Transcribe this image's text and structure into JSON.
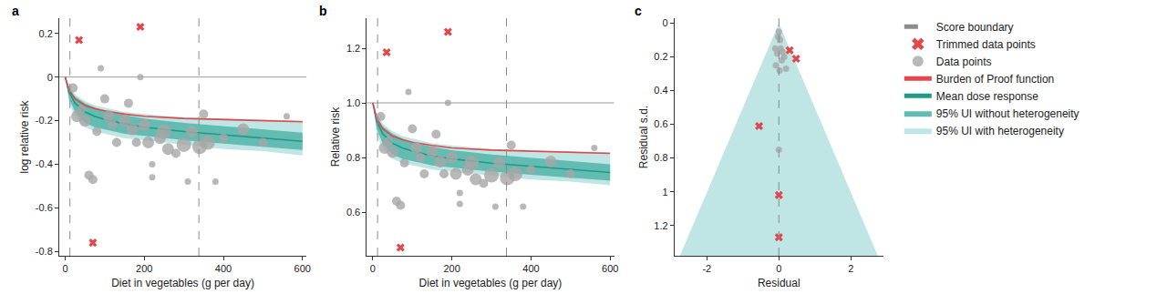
{
  "chart_data": [
    {
      "type": "line",
      "panel_label": "a",
      "legend": "right",
      "x_label": "Diet in vegetables (g per day)",
      "y_label": "log relative risk",
      "xlim": [
        -15,
        610
      ],
      "xticks": [
        0,
        200,
        400,
        600
      ],
      "ylim": [
        -0.82,
        0.27
      ],
      "yticks": [
        -0.8,
        -0.6,
        -0.4,
        -0.2,
        0,
        0.2
      ],
      "reference_line": 0,
      "curve_x": [
        0,
        10,
        25,
        50,
        75,
        100,
        150,
        200,
        300,
        400,
        500,
        600
      ],
      "series": [
        {
          "name": "95% UI with heterogeneity",
          "type": "band",
          "color": "#bfe6e4",
          "lower": [
            0,
            -0.12,
            -0.18,
            -0.23,
            -0.25,
            -0.26,
            -0.28,
            -0.29,
            -0.31,
            -0.33,
            -0.34,
            -0.36
          ],
          "upper": [
            0,
            -0.04,
            -0.08,
            -0.11,
            -0.13,
            -0.14,
            -0.16,
            -0.17,
            -0.185,
            -0.19,
            -0.195,
            -0.2
          ]
        },
        {
          "name": "95% UI without heterogeneity",
          "type": "band",
          "color": "#62bcb1",
          "lower": [
            0,
            -0.1,
            -0.16,
            -0.21,
            -0.23,
            -0.24,
            -0.26,
            -0.27,
            -0.29,
            -0.305,
            -0.32,
            -0.335
          ],
          "upper": [
            0,
            -0.05,
            -0.09,
            -0.12,
            -0.14,
            -0.155,
            -0.175,
            -0.19,
            -0.21,
            -0.225,
            -0.24,
            -0.255
          ]
        },
        {
          "name": "Mean dose response",
          "type": "line",
          "color": "#1f9a86",
          "values": [
            0,
            -0.07,
            -0.12,
            -0.16,
            -0.18,
            -0.195,
            -0.215,
            -0.23,
            -0.25,
            -0.265,
            -0.28,
            -0.295
          ]
        },
        {
          "name": "Burden of Proof function",
          "type": "line",
          "color": "#e2474b",
          "values": [
            0,
            -0.06,
            -0.1,
            -0.13,
            -0.145,
            -0.155,
            -0.17,
            -0.18,
            -0.19,
            -0.195,
            -0.2,
            -0.205
          ]
        },
        {
          "name": "Data points",
          "type": "scatter",
          "color": "#a6a6a6",
          "marker": "circle",
          "x": [
            20,
            30,
            40,
            50,
            60,
            70,
            80,
            90,
            100,
            110,
            120,
            130,
            150,
            160,
            170,
            180,
            190,
            200,
            210,
            220,
            220,
            240,
            250,
            260,
            280,
            300,
            310,
            320,
            340,
            350,
            360,
            380,
            400,
            450,
            500,
            560
          ],
          "values": [
            -0.05,
            -0.18,
            -0.15,
            -0.2,
            -0.45,
            -0.47,
            -0.25,
            0.04,
            -0.1,
            -0.18,
            -0.22,
            -0.3,
            -0.2,
            -0.12,
            -0.24,
            -0.3,
            0,
            -0.22,
            -0.3,
            -0.4,
            -0.46,
            -0.28,
            -0.25,
            -0.33,
            -0.35,
            -0.31,
            -0.48,
            -0.25,
            -0.32,
            -0.17,
            -0.3,
            -0.48,
            -0.28,
            -0.24,
            -0.3,
            -0.18
          ],
          "size": [
            2,
            3,
            2,
            3,
            2,
            2,
            2,
            1,
            2,
            3,
            2,
            2,
            3,
            2,
            3,
            2,
            1,
            3,
            3,
            1,
            1,
            3,
            4,
            3,
            2,
            4,
            1,
            3,
            4,
            2,
            4,
            1,
            2,
            3,
            2,
            1
          ]
        },
        {
          "name": "Trimmed data points",
          "type": "scatter",
          "color": "#e2474b",
          "marker": "x",
          "x": [
            35,
            190,
            70
          ],
          "values": [
            0.17,
            0.23,
            -0.76
          ]
        },
        {
          "name": "Score boundary",
          "type": "vline",
          "color": "#8c8c8c",
          "line_style": "dash",
          "x": [
            12,
            338
          ]
        }
      ]
    },
    {
      "type": "line",
      "panel_label": "b",
      "x_label": "Diet in vegetables (g per day)",
      "y_label": "Relative risk",
      "xlim": [
        -15,
        610
      ],
      "xticks": [
        0,
        200,
        400,
        600
      ],
      "ylim": [
        0.44,
        1.31
      ],
      "yticks": [
        0.6,
        0.8,
        {
          "value": 1,
          "label": "1.0"
        },
        1.2
      ],
      "reference_line": 1,
      "curve_x": [
        0,
        10,
        25,
        50,
        75,
        100,
        150,
        200,
        300,
        400,
        500,
        600
      ],
      "series": [
        {
          "name": "95% UI with heterogeneity",
          "type": "band",
          "color": "#bfe6e4",
          "lower": [
            1,
            0.887,
            0.835,
            0.795,
            0.779,
            0.771,
            0.756,
            0.748,
            0.733,
            0.719,
            0.712,
            0.698
          ],
          "upper": [
            1,
            0.961,
            0.923,
            0.896,
            0.878,
            0.869,
            0.852,
            0.844,
            0.831,
            0.827,
            0.823,
            0.819
          ]
        },
        {
          "name": "95% UI without heterogeneity",
          "type": "band",
          "color": "#62bcb1",
          "lower": [
            1,
            0.905,
            0.852,
            0.811,
            0.795,
            0.787,
            0.771,
            0.763,
            0.748,
            0.737,
            0.726,
            0.715
          ],
          "upper": [
            1,
            0.951,
            0.914,
            0.887,
            0.869,
            0.856,
            0.839,
            0.827,
            0.811,
            0.799,
            0.787,
            0.775
          ]
        },
        {
          "name": "Mean dose response",
          "type": "line",
          "color": "#1f9a86",
          "values": [
            1,
            0.932,
            0.887,
            0.852,
            0.835,
            0.823,
            0.806,
            0.795,
            0.779,
            0.767,
            0.756,
            0.745
          ]
        },
        {
          "name": "Burden of Proof function",
          "type": "line",
          "color": "#e2474b",
          "values": [
            1,
            0.942,
            0.905,
            0.878,
            0.865,
            0.856,
            0.844,
            0.835,
            0.827,
            0.823,
            0.819,
            0.815
          ]
        },
        {
          "name": "Data points",
          "type": "scatter",
          "color": "#a6a6a6",
          "marker": "circle",
          "x": [
            20,
            30,
            40,
            50,
            60,
            70,
            80,
            90,
            100,
            110,
            120,
            130,
            150,
            160,
            170,
            180,
            190,
            200,
            210,
            220,
            220,
            240,
            250,
            260,
            280,
            300,
            310,
            320,
            340,
            350,
            360,
            380,
            400,
            450,
            500,
            560
          ],
          "values": [
            0.95,
            0.835,
            0.86,
            0.82,
            0.64,
            0.625,
            0.78,
            1.04,
            0.905,
            0.835,
            0.8,
            0.74,
            0.82,
            0.885,
            0.785,
            0.74,
            1.0,
            0.8,
            0.74,
            0.67,
            0.63,
            0.755,
            0.78,
            0.72,
            0.705,
            0.735,
            0.62,
            0.78,
            0.725,
            0.845,
            0.74,
            0.62,
            0.755,
            0.785,
            0.74,
            0.835
          ],
          "size": [
            2,
            3,
            2,
            3,
            2,
            2,
            2,
            1,
            2,
            3,
            2,
            2,
            3,
            2,
            3,
            2,
            1,
            3,
            3,
            1,
            1,
            3,
            4,
            3,
            2,
            4,
            1,
            3,
            4,
            2,
            4,
            1,
            2,
            3,
            2,
            1
          ]
        },
        {
          "name": "Trimmed data points",
          "type": "scatter",
          "color": "#e2474b",
          "marker": "x",
          "x": [
            35,
            190,
            70
          ],
          "values": [
            1.185,
            1.26,
            0.47
          ]
        },
        {
          "name": "Score boundary",
          "type": "vline",
          "color": "#8c8c8c",
          "line_style": "dash",
          "x": [
            12,
            338
          ]
        }
      ]
    },
    {
      "type": "scatter",
      "panel_label": "c",
      "x_label": "Residual",
      "y_label": "Residual s.d.",
      "xlim": [
        -2.9,
        2.9
      ],
      "xticks": [
        -2,
        0,
        2
      ],
      "ylim": [
        1.38,
        -0.03
      ],
      "yticks": [
        0,
        0.2,
        0.4,
        0.6,
        0.8,
        1.0,
        1.2
      ],
      "series": [
        {
          "name": "95% UI with heterogeneity",
          "type": "area",
          "color": "#bfe6e4",
          "x": [
            -2.75,
            0,
            2.75
          ],
          "values": [
            1.38,
            0,
            1.38
          ]
        },
        {
          "name": "Score boundary",
          "type": "vline",
          "color": "#8c8c8c",
          "line_style": "dash",
          "x": [
            0
          ]
        },
        {
          "name": "Data points",
          "type": "scatter",
          "color": "#a6a6a6",
          "marker": "circle",
          "x": [
            0,
            -0.02,
            0.03,
            -0.1,
            0.05,
            0.1,
            -0.05,
            0.15,
            0.08,
            -0.08,
            0.2,
            0.02,
            0
          ],
          "values": [
            0.05,
            0.08,
            0.1,
            0.15,
            0.15,
            0.17,
            0.18,
            0.2,
            0.22,
            0.25,
            0.27,
            0.28,
            0.75
          ]
        },
        {
          "name": "Trimmed data points",
          "type": "scatter",
          "color": "#e2474b",
          "marker": "x",
          "x": [
            0.3,
            0.48,
            -0.55,
            0,
            0
          ],
          "values": [
            0.16,
            0.21,
            0.61,
            1.02,
            1.27
          ]
        }
      ]
    }
  ]
}
